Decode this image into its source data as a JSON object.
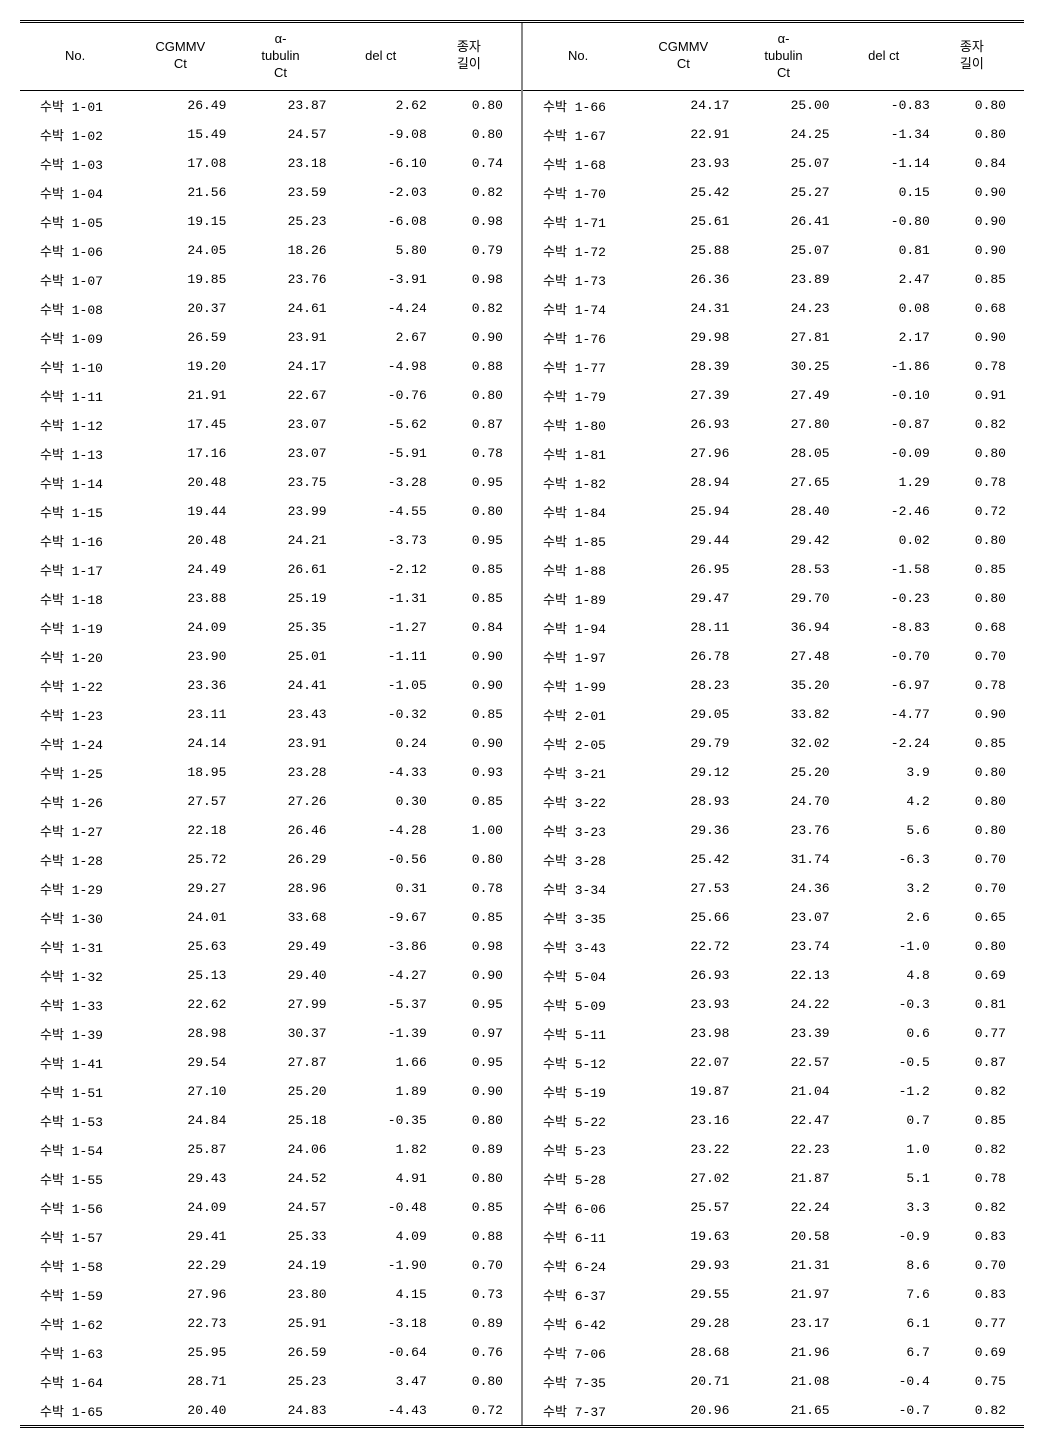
{
  "headers": {
    "no": "No.",
    "cgmmv": "CGMMV\nCt",
    "tubulin": "α-\ntubulin\nCt",
    "delct": "del ct",
    "length": "종자\n길이"
  },
  "left_rows": [
    {
      "no": "수박 1-01",
      "cgmmv": "26.49",
      "tub": "23.87",
      "del": "2.62",
      "len": "0.80"
    },
    {
      "no": "수박 1-02",
      "cgmmv": "15.49",
      "tub": "24.57",
      "del": "-9.08",
      "len": "0.80"
    },
    {
      "no": "수박 1-03",
      "cgmmv": "17.08",
      "tub": "23.18",
      "del": "-6.10",
      "len": "0.74"
    },
    {
      "no": "수박 1-04",
      "cgmmv": "21.56",
      "tub": "23.59",
      "del": "-2.03",
      "len": "0.82"
    },
    {
      "no": "수박 1-05",
      "cgmmv": "19.15",
      "tub": "25.23",
      "del": "-6.08",
      "len": "0.98"
    },
    {
      "no": "수박 1-06",
      "cgmmv": "24.05",
      "tub": "18.26",
      "del": "5.80",
      "len": "0.79"
    },
    {
      "no": "수박 1-07",
      "cgmmv": "19.85",
      "tub": "23.76",
      "del": "-3.91",
      "len": "0.98"
    },
    {
      "no": "수박 1-08",
      "cgmmv": "20.37",
      "tub": "24.61",
      "del": "-4.24",
      "len": "0.82"
    },
    {
      "no": "수박 1-09",
      "cgmmv": "26.59",
      "tub": "23.91",
      "del": "2.67",
      "len": "0.90"
    },
    {
      "no": "수박 1-10",
      "cgmmv": "19.20",
      "tub": "24.17",
      "del": "-4.98",
      "len": "0.88"
    },
    {
      "no": "수박 1-11",
      "cgmmv": "21.91",
      "tub": "22.67",
      "del": "-0.76",
      "len": "0.80"
    },
    {
      "no": "수박 1-12",
      "cgmmv": "17.45",
      "tub": "23.07",
      "del": "-5.62",
      "len": "0.87"
    },
    {
      "no": "수박 1-13",
      "cgmmv": "17.16",
      "tub": "23.07",
      "del": "-5.91",
      "len": "0.78"
    },
    {
      "no": "수박 1-14",
      "cgmmv": "20.48",
      "tub": "23.75",
      "del": "-3.28",
      "len": "0.95"
    },
    {
      "no": "수박 1-15",
      "cgmmv": "19.44",
      "tub": "23.99",
      "del": "-4.55",
      "len": "0.80"
    },
    {
      "no": "수박 1-16",
      "cgmmv": "20.48",
      "tub": "24.21",
      "del": "-3.73",
      "len": "0.95"
    },
    {
      "no": "수박 1-17",
      "cgmmv": "24.49",
      "tub": "26.61",
      "del": "-2.12",
      "len": "0.85"
    },
    {
      "no": "수박 1-18",
      "cgmmv": "23.88",
      "tub": "25.19",
      "del": "-1.31",
      "len": "0.85"
    },
    {
      "no": "수박 1-19",
      "cgmmv": "24.09",
      "tub": "25.35",
      "del": "-1.27",
      "len": "0.84"
    },
    {
      "no": "수박 1-20",
      "cgmmv": "23.90",
      "tub": "25.01",
      "del": "-1.11",
      "len": "0.90"
    },
    {
      "no": "수박 1-22",
      "cgmmv": "23.36",
      "tub": "24.41",
      "del": "-1.05",
      "len": "0.90"
    },
    {
      "no": "수박 1-23",
      "cgmmv": "23.11",
      "tub": "23.43",
      "del": "-0.32",
      "len": "0.85"
    },
    {
      "no": "수박 1-24",
      "cgmmv": "24.14",
      "tub": "23.91",
      "del": "0.24",
      "len": "0.90"
    },
    {
      "no": "수박 1-25",
      "cgmmv": "18.95",
      "tub": "23.28",
      "del": "-4.33",
      "len": "0.93"
    },
    {
      "no": "수박 1-26",
      "cgmmv": "27.57",
      "tub": "27.26",
      "del": "0.30",
      "len": "0.85"
    },
    {
      "no": "수박 1-27",
      "cgmmv": "22.18",
      "tub": "26.46",
      "del": "-4.28",
      "len": "1.00"
    },
    {
      "no": "수박 1-28",
      "cgmmv": "25.72",
      "tub": "26.29",
      "del": "-0.56",
      "len": "0.80"
    },
    {
      "no": "수박 1-29",
      "cgmmv": "29.27",
      "tub": "28.96",
      "del": "0.31",
      "len": "0.78"
    },
    {
      "no": "수박 1-30",
      "cgmmv": "24.01",
      "tub": "33.68",
      "del": "-9.67",
      "len": "0.85"
    },
    {
      "no": "수박 1-31",
      "cgmmv": "25.63",
      "tub": "29.49",
      "del": "-3.86",
      "len": "0.98"
    },
    {
      "no": "수박 1-32",
      "cgmmv": "25.13",
      "tub": "29.40",
      "del": "-4.27",
      "len": "0.90"
    },
    {
      "no": "수박 1-33",
      "cgmmv": "22.62",
      "tub": "27.99",
      "del": "-5.37",
      "len": "0.95"
    },
    {
      "no": "수박 1-39",
      "cgmmv": "28.98",
      "tub": "30.37",
      "del": "-1.39",
      "len": "0.97"
    },
    {
      "no": "수박 1-41",
      "cgmmv": "29.54",
      "tub": "27.87",
      "del": "1.66",
      "len": "0.95"
    },
    {
      "no": "수박 1-51",
      "cgmmv": "27.10",
      "tub": "25.20",
      "del": "1.89",
      "len": "0.90"
    },
    {
      "no": "수박 1-53",
      "cgmmv": "24.84",
      "tub": "25.18",
      "del": "-0.35",
      "len": "0.80"
    },
    {
      "no": "수박 1-54",
      "cgmmv": "25.87",
      "tub": "24.06",
      "del": "1.82",
      "len": "0.89"
    },
    {
      "no": "수박 1-55",
      "cgmmv": "29.43",
      "tub": "24.52",
      "del": "4.91",
      "len": "0.80"
    },
    {
      "no": "수박 1-56",
      "cgmmv": "24.09",
      "tub": "24.57",
      "del": "-0.48",
      "len": "0.85"
    },
    {
      "no": "수박 1-57",
      "cgmmv": "29.41",
      "tub": "25.33",
      "del": "4.09",
      "len": "0.88"
    },
    {
      "no": "수박 1-58",
      "cgmmv": "22.29",
      "tub": "24.19",
      "del": "-1.90",
      "len": "0.70"
    },
    {
      "no": "수박 1-59",
      "cgmmv": "27.96",
      "tub": "23.80",
      "del": "4.15",
      "len": "0.73"
    },
    {
      "no": "수박 1-62",
      "cgmmv": "22.73",
      "tub": "25.91",
      "del": "-3.18",
      "len": "0.89"
    },
    {
      "no": "수박 1-63",
      "cgmmv": "25.95",
      "tub": "26.59",
      "del": "-0.64",
      "len": "0.76"
    },
    {
      "no": "수박 1-64",
      "cgmmv": "28.71",
      "tub": "25.23",
      "del": "3.47",
      "len": "0.80"
    },
    {
      "no": "수박 1-65",
      "cgmmv": "20.40",
      "tub": "24.83",
      "del": "-4.43",
      "len": "0.72"
    }
  ],
  "right_rows": [
    {
      "no": "수박 1-66",
      "cgmmv": "24.17",
      "tub": "25.00",
      "del": "-0.83",
      "len": "0.80"
    },
    {
      "no": "수박 1-67",
      "cgmmv": "22.91",
      "tub": "24.25",
      "del": "-1.34",
      "len": "0.80"
    },
    {
      "no": "수박 1-68",
      "cgmmv": "23.93",
      "tub": "25.07",
      "del": "-1.14",
      "len": "0.84"
    },
    {
      "no": "수박 1-70",
      "cgmmv": "25.42",
      "tub": "25.27",
      "del": "0.15",
      "len": "0.90"
    },
    {
      "no": "수박 1-71",
      "cgmmv": "25.61",
      "tub": "26.41",
      "del": "-0.80",
      "len": "0.90"
    },
    {
      "no": "수박 1-72",
      "cgmmv": "25.88",
      "tub": "25.07",
      "del": "0.81",
      "len": "0.90"
    },
    {
      "no": "수박 1-73",
      "cgmmv": "26.36",
      "tub": "23.89",
      "del": "2.47",
      "len": "0.85"
    },
    {
      "no": "수박 1-74",
      "cgmmv": "24.31",
      "tub": "24.23",
      "del": "0.08",
      "len": "0.68"
    },
    {
      "no": "수박 1-76",
      "cgmmv": "29.98",
      "tub": "27.81",
      "del": "2.17",
      "len": "0.90"
    },
    {
      "no": "수박 1-77",
      "cgmmv": "28.39",
      "tub": "30.25",
      "del": "-1.86",
      "len": "0.78"
    },
    {
      "no": "수박 1-79",
      "cgmmv": "27.39",
      "tub": "27.49",
      "del": "-0.10",
      "len": "0.91"
    },
    {
      "no": "수박 1-80",
      "cgmmv": "26.93",
      "tub": "27.80",
      "del": "-0.87",
      "len": "0.82"
    },
    {
      "no": "수박 1-81",
      "cgmmv": "27.96",
      "tub": "28.05",
      "del": "-0.09",
      "len": "0.80"
    },
    {
      "no": "수박 1-82",
      "cgmmv": "28.94",
      "tub": "27.65",
      "del": "1.29",
      "len": "0.78"
    },
    {
      "no": "수박 1-84",
      "cgmmv": "25.94",
      "tub": "28.40",
      "del": "-2.46",
      "len": "0.72"
    },
    {
      "no": "수박 1-85",
      "cgmmv": "29.44",
      "tub": "29.42",
      "del": "0.02",
      "len": "0.80"
    },
    {
      "no": "수박 1-88",
      "cgmmv": "26.95",
      "tub": "28.53",
      "del": "-1.58",
      "len": "0.85"
    },
    {
      "no": "수박 1-89",
      "cgmmv": "29.47",
      "tub": "29.70",
      "del": "-0.23",
      "len": "0.80"
    },
    {
      "no": "수박 1-94",
      "cgmmv": "28.11",
      "tub": "36.94",
      "del": "-8.83",
      "len": "0.68"
    },
    {
      "no": "수박 1-97",
      "cgmmv": "26.78",
      "tub": "27.48",
      "del": "-0.70",
      "len": "0.70"
    },
    {
      "no": "수박 1-99",
      "cgmmv": "28.23",
      "tub": "35.20",
      "del": "-6.97",
      "len": "0.78"
    },
    {
      "no": "수박 2-01",
      "cgmmv": "29.05",
      "tub": "33.82",
      "del": "-4.77",
      "len": "0.90"
    },
    {
      "no": "수박 2-05",
      "cgmmv": "29.79",
      "tub": "32.02",
      "del": "-2.24",
      "len": "0.85"
    },
    {
      "no": "수박 3-21",
      "cgmmv": "29.12",
      "tub": "25.20",
      "del": "3.9",
      "len": "0.80"
    },
    {
      "no": "수박 3-22",
      "cgmmv": "28.93",
      "tub": "24.70",
      "del": "4.2",
      "len": "0.80"
    },
    {
      "no": "수박 3-23",
      "cgmmv": "29.36",
      "tub": "23.76",
      "del": "5.6",
      "len": "0.80"
    },
    {
      "no": "수박 3-28",
      "cgmmv": "25.42",
      "tub": "31.74",
      "del": "-6.3",
      "len": "0.70"
    },
    {
      "no": "수박 3-34",
      "cgmmv": "27.53",
      "tub": "24.36",
      "del": "3.2",
      "len": "0.70"
    },
    {
      "no": "수박 3-35",
      "cgmmv": "25.66",
      "tub": "23.07",
      "del": "2.6",
      "len": "0.65"
    },
    {
      "no": "수박 3-43",
      "cgmmv": "22.72",
      "tub": "23.74",
      "del": "-1.0",
      "len": "0.80"
    },
    {
      "no": "수박 5-04",
      "cgmmv": "26.93",
      "tub": "22.13",
      "del": "4.8",
      "len": "0.69"
    },
    {
      "no": "수박 5-09",
      "cgmmv": "23.93",
      "tub": "24.22",
      "del": "-0.3",
      "len": "0.81"
    },
    {
      "no": "수박 5-11",
      "cgmmv": "23.98",
      "tub": "23.39",
      "del": "0.6",
      "len": "0.77"
    },
    {
      "no": "수박 5-12",
      "cgmmv": "22.07",
      "tub": "22.57",
      "del": "-0.5",
      "len": "0.87"
    },
    {
      "no": "수박 5-19",
      "cgmmv": "19.87",
      "tub": "21.04",
      "del": "-1.2",
      "len": "0.82"
    },
    {
      "no": "수박 5-22",
      "cgmmv": "23.16",
      "tub": "22.47",
      "del": "0.7",
      "len": "0.85"
    },
    {
      "no": "수박 5-23",
      "cgmmv": "23.22",
      "tub": "22.23",
      "del": "1.0",
      "len": "0.82"
    },
    {
      "no": "수박 5-28",
      "cgmmv": "27.02",
      "tub": "21.87",
      "del": "5.1",
      "len": "0.78"
    },
    {
      "no": "수박 6-06",
      "cgmmv": "25.57",
      "tub": "22.24",
      "del": "3.3",
      "len": "0.82"
    },
    {
      "no": "수박 6-11",
      "cgmmv": "19.63",
      "tub": "20.58",
      "del": "-0.9",
      "len": "0.83"
    },
    {
      "no": "수박 6-24",
      "cgmmv": "29.93",
      "tub": "21.31",
      "del": "8.6",
      "len": "0.70"
    },
    {
      "no": "수박 6-37",
      "cgmmv": "29.55",
      "tub": "21.97",
      "del": "7.6",
      "len": "0.83"
    },
    {
      "no": "수박 6-42",
      "cgmmv": "29.28",
      "tub": "23.17",
      "del": "6.1",
      "len": "0.77"
    },
    {
      "no": "수박 7-06",
      "cgmmv": "28.68",
      "tub": "21.96",
      "del": "6.7",
      "len": "0.69"
    },
    {
      "no": "수박 7-35",
      "cgmmv": "20.71",
      "tub": "21.08",
      "del": "-0.4",
      "len": "0.75"
    },
    {
      "no": "수박 7-37",
      "cgmmv": "20.96",
      "tub": "21.65",
      "del": "-0.7",
      "len": "0.82"
    }
  ]
}
